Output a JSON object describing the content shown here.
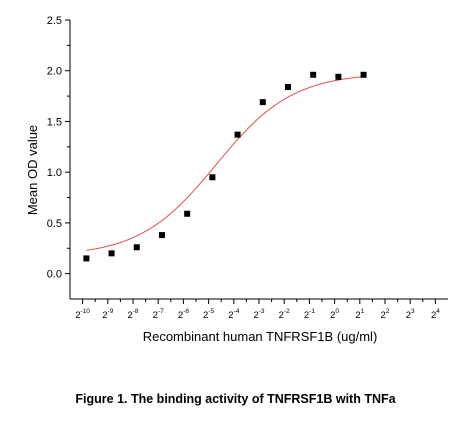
{
  "chart_data": {
    "type": "scatter",
    "xlabel": "Recombinant  human TNFRSF1B (ug/ml)",
    "ylabel": "Mean OD value",
    "x_scale": "log2",
    "xlim": [
      -10.5,
      4.5
    ],
    "ylim": [
      -0.25,
      2.5
    ],
    "y_ticks": [
      "0.0",
      "0.5",
      "1.0",
      "1.5",
      "2.0",
      "2.5"
    ],
    "x_ticks": [
      {
        "base": "2",
        "exp": "-10"
      },
      {
        "base": "2",
        "exp": "-9"
      },
      {
        "base": "2",
        "exp": "-8"
      },
      {
        "base": "2",
        "exp": "-7"
      },
      {
        "base": "2",
        "exp": "-6"
      },
      {
        "base": "2",
        "exp": "-5"
      },
      {
        "base": "2",
        "exp": "-4"
      },
      {
        "base": "2",
        "exp": "-3"
      },
      {
        "base": "2",
        "exp": "-2"
      },
      {
        "base": "2",
        "exp": "-1"
      },
      {
        "base": "2",
        "exp": "0"
      },
      {
        "base": "2",
        "exp": "1"
      },
      {
        "base": "2",
        "exp": "2"
      },
      {
        "base": "2",
        "exp": "3"
      },
      {
        "base": "2",
        "exp": "4"
      }
    ],
    "points": [
      {
        "x": -9.85,
        "y": 0.15
      },
      {
        "x": -8.85,
        "y": 0.2
      },
      {
        "x": -7.85,
        "y": 0.26
      },
      {
        "x": -6.85,
        "y": 0.38
      },
      {
        "x": -5.85,
        "y": 0.59
      },
      {
        "x": -4.85,
        "y": 0.95
      },
      {
        "x": -3.85,
        "y": 1.37
      },
      {
        "x": -2.85,
        "y": 1.69
      },
      {
        "x": -1.85,
        "y": 1.84
      },
      {
        "x": -0.85,
        "y": 1.96
      },
      {
        "x": 0.15,
        "y": 1.94
      },
      {
        "x": 1.15,
        "y": 1.96
      }
    ],
    "fit_curve": {
      "bottom": 0.17,
      "top": 1.98,
      "log2_ec50": -4.7,
      "slope": 0.95
    },
    "colors": {
      "points": "#000000",
      "curve": "#e05050",
      "axes": "#000000"
    },
    "grid": false,
    "legend": "none"
  },
  "caption": "Figure 1. The binding activity of TNFRSF1B with TNFa"
}
